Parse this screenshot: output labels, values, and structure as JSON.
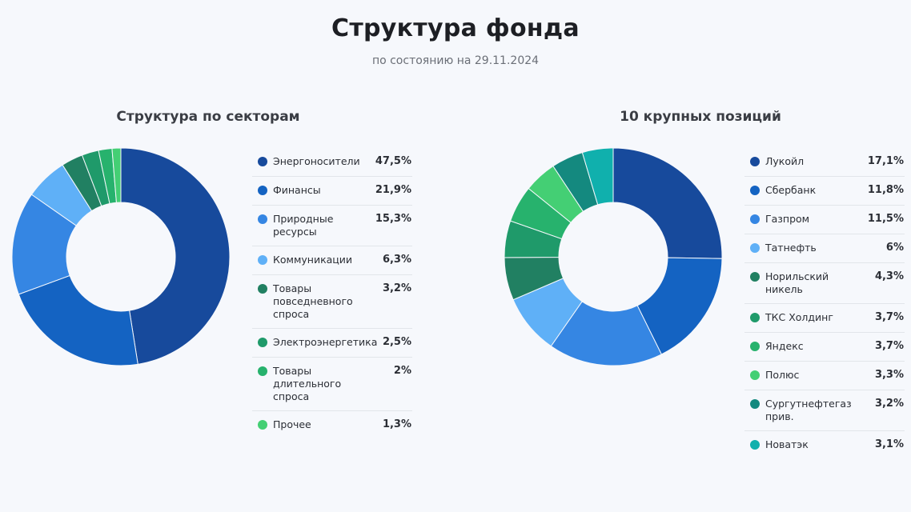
{
  "header": {
    "title": "Структура фонда",
    "subtitle": "по состоянию на 29.11.2024"
  },
  "chart_data": [
    {
      "type": "pie",
      "title": "Структура по секторам",
      "categories": [
        "Энергоносители",
        "Финансы",
        "Природные ресурсы",
        "Коммуникации",
        "Товары повседневного спроса",
        "Электроэнергетика",
        "Товары длительного спроса",
        "Прочее"
      ],
      "values": [
        47.5,
        21.9,
        15.3,
        6.3,
        3.2,
        2.5,
        2,
        1.3
      ],
      "labels": [
        "47,5%",
        "21,9%",
        "15,3%",
        "6,3%",
        "3,2%",
        "2,5%",
        "2%",
        "1,3%"
      ],
      "colors": [
        "#174a9c",
        "#1463c2",
        "#3586e3",
        "#5fb0f7",
        "#218062",
        "#1f9a6a",
        "#27b26d",
        "#44cf74"
      ]
    },
    {
      "type": "pie",
      "title": "10 крупных позиций",
      "categories": [
        "Лукойл",
        "Сбербанк",
        "Газпром",
        "Татнефть",
        "Норильский никель",
        "ТКС Холдинг",
        "Яндекс",
        "Полюс",
        "Сургутнефтегаз прив.",
        "Новатэк"
      ],
      "values": [
        17.1,
        11.8,
        11.5,
        6,
        4.3,
        3.7,
        3.7,
        3.3,
        3.2,
        3.1
      ],
      "labels": [
        "17,1%",
        "11,8%",
        "11,5%",
        "6%",
        "4,3%",
        "3,7%",
        "3,7%",
        "3,3%",
        "3,2%",
        "3,1%"
      ],
      "colors": [
        "#174a9c",
        "#1463c2",
        "#3586e3",
        "#5fb0f7",
        "#218062",
        "#1f9a6a",
        "#27b26d",
        "#44cf74",
        "#14897f",
        "#10b0ad"
      ]
    }
  ]
}
